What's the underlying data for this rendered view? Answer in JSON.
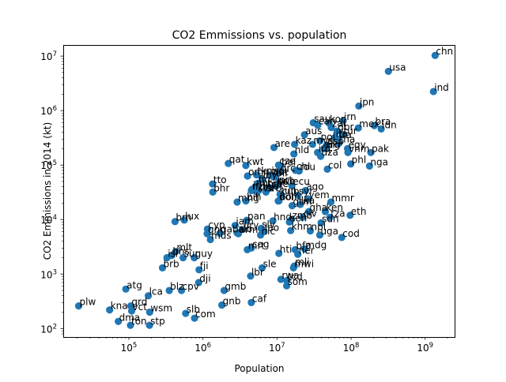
{
  "chart_data": {
    "type": "scatter",
    "title": "CO2 Emmissions vs. population",
    "xlabel": "Population",
    "ylabel": "CO2 Emmissions in 2014 (kt)",
    "xscale": "log",
    "yscale": "log",
    "xlim": [
      13000,
      2500000000
    ],
    "ylim": [
      70,
      16000000
    ],
    "grid": false,
    "marker_color": "#1f77b4",
    "x_ticks": [
      {
        "value": 100000,
        "base": "10",
        "exp": "5"
      },
      {
        "value": 1000000,
        "base": "10",
        "exp": "6"
      },
      {
        "value": 10000000,
        "base": "10",
        "exp": "7"
      },
      {
        "value": 100000000,
        "base": "10",
        "exp": "8"
      },
      {
        "value": 1000000000,
        "base": "10",
        "exp": "9"
      }
    ],
    "y_ticks": [
      {
        "value": 100,
        "base": "10",
        "exp": "2"
      },
      {
        "value": 1000,
        "base": "10",
        "exp": "3"
      },
      {
        "value": 10000,
        "base": "10",
        "exp": "4"
      },
      {
        "value": 100000,
        "base": "10",
        "exp": "5"
      },
      {
        "value": 1000000,
        "base": "10",
        "exp": "6"
      },
      {
        "value": 10000000,
        "base": "10",
        "exp": "7"
      }
    ],
    "points": [
      {
        "label": "chn",
        "x": 1364000000,
        "y": 10300000
      },
      {
        "label": "usa",
        "x": 318900000,
        "y": 5250000
      },
      {
        "label": "ind",
        "x": 1295000000,
        "y": 2240000
      },
      {
        "label": "jpn",
        "x": 127300000,
        "y": 1210000
      },
      {
        "label": "irn",
        "x": 78100000,
        "y": 650000
      },
      {
        "label": "sau",
        "x": 30900000,
        "y": 600000
      },
      {
        "label": "kor",
        "x": 50400000,
        "y": 590000
      },
      {
        "label": "can",
        "x": 35500000,
        "y": 540000
      },
      {
        "label": "bra",
        "x": 206000000,
        "y": 530000
      },
      {
        "label": "mex",
        "x": 125400000,
        "y": 480000
      },
      {
        "label": "idn",
        "x": 255100000,
        "y": 460000
      },
      {
        "label": "zaf",
        "x": 54000000,
        "y": 490000
      },
      {
        "label": "gbr",
        "x": 64600000,
        "y": 420000
      },
      {
        "label": "tur",
        "x": 77000000,
        "y": 360000
      },
      {
        "label": "aus",
        "x": 23500000,
        "y": 360000
      },
      {
        "label": "fra",
        "x": 66300000,
        "y": 300000
      },
      {
        "label": "ita",
        "x": 60800000,
        "y": 320000
      },
      {
        "label": "pol",
        "x": 38000000,
        "y": 280000
      },
      {
        "label": "tha",
        "x": 68400000,
        "y": 250000
      },
      {
        "label": "esp",
        "x": 46500000,
        "y": 230000
      },
      {
        "label": "egy",
        "x": 89600000,
        "y": 200000
      },
      {
        "label": "vnm",
        "x": 90700000,
        "y": 170000
      },
      {
        "label": "pak",
        "x": 185000000,
        "y": 170000
      },
      {
        "label": "are",
        "x": 9100000,
        "y": 210000
      },
      {
        "label": "nld",
        "x": 16900000,
        "y": 160000
      },
      {
        "label": "ukr",
        "x": 45300000,
        "y": 200000
      },
      {
        "label": "mys",
        "x": 30200000,
        "y": 240000
      },
      {
        "label": "kaz",
        "x": 17300000,
        "y": 240000
      },
      {
        "label": "arg",
        "x": 42900000,
        "y": 200000
      },
      {
        "label": "irq",
        "x": 35300000,
        "y": 170000
      },
      {
        "label": "dza",
        "x": 38900000,
        "y": 145000
      },
      {
        "label": "phl",
        "x": 99100000,
        "y": 105000
      },
      {
        "label": "nga",
        "x": 177500000,
        "y": 96000
      },
      {
        "label": "col",
        "x": 47800000,
        "y": 84000
      },
      {
        "label": "qat",
        "x": 2200000,
        "y": 107000
      },
      {
        "label": "kwt",
        "x": 3800000,
        "y": 98000
      },
      {
        "label": "bel",
        "x": 11200000,
        "y": 95000
      },
      {
        "label": "cze",
        "x": 10500000,
        "y": 100000
      },
      {
        "label": "grc",
        "x": 10900000,
        "y": 75000
      },
      {
        "label": "rou",
        "x": 19900000,
        "y": 78000
      },
      {
        "label": "chl",
        "x": 17800000,
        "y": 80000
      },
      {
        "label": "isr",
        "x": 8200000,
        "y": 66000
      },
      {
        "label": "aut",
        "x": 8500000,
        "y": 63000
      },
      {
        "label": "blr",
        "x": 9500000,
        "y": 60000
      },
      {
        "label": "prt",
        "x": 10400000,
        "y": 45000
      },
      {
        "label": "swe",
        "x": 9700000,
        "y": 43000
      },
      {
        "label": "hun",
        "x": 9900000,
        "y": 42000
      },
      {
        "label": "che",
        "x": 8200000,
        "y": 38000
      },
      {
        "label": "ecu",
        "x": 15900000,
        "y": 42000
      },
      {
        "label": "ago",
        "x": 24200000,
        "y": 34000
      },
      {
        "label": "tto",
        "x": 1350000,
        "y": 45000
      },
      {
        "label": "bhr",
        "x": 1360000,
        "y": 32000
      },
      {
        "label": "nor",
        "x": 5100000,
        "y": 40000
      },
      {
        "label": "fin",
        "x": 5460000,
        "y": 46000
      },
      {
        "label": "dnk",
        "x": 5640000,
        "y": 34000
      },
      {
        "label": "irl",
        "x": 4600000,
        "y": 36000
      },
      {
        "label": "nzl",
        "x": 4500000,
        "y": 34000
      },
      {
        "label": "mng",
        "x": 2900000,
        "y": 21000
      },
      {
        "label": "srb",
        "x": 7100000,
        "y": 32000
      },
      {
        "label": "bgr",
        "x": 7200000,
        "y": 38000
      },
      {
        "label": "lby",
        "x": 6300000,
        "y": 55000
      },
      {
        "label": "omn",
        "x": 4000000,
        "y": 63000
      },
      {
        "label": "svk",
        "x": 5400000,
        "y": 32000
      },
      {
        "label": "tkm",
        "x": 5300000,
        "y": 66000
      },
      {
        "label": "syr",
        "x": 19200000,
        "y": 28000
      },
      {
        "label": "bol",
        "x": 10600000,
        "y": 22000
      },
      {
        "label": "yem",
        "x": 26200000,
        "y": 24000
      },
      {
        "label": "mmr",
        "x": 53400000,
        "y": 21000
      },
      {
        "label": "tun",
        "x": 11000000,
        "y": 29000
      },
      {
        "label": "cub",
        "x": 11400000,
        "y": 28000
      },
      {
        "label": "dom",
        "x": 10400000,
        "y": 22000
      },
      {
        "label": "gtm",
        "x": 16000000,
        "y": 18000
      },
      {
        "label": "lka",
        "x": 20600000,
        "y": 19000
      },
      {
        "label": "ken",
        "x": 44900000,
        "y": 14000
      },
      {
        "label": "tza",
        "x": 51800000,
        "y": 11000
      },
      {
        "label": "eth",
        "x": 97000000,
        "y": 12000
      },
      {
        "label": "gha",
        "x": 26800000,
        "y": 14000
      },
      {
        "label": "civ",
        "x": 22200000,
        "y": 11000
      },
      {
        "label": "zmb",
        "x": 15600000,
        "y": 10000
      },
      {
        "label": "sen",
        "x": 14700000,
        "y": 9000
      },
      {
        "label": "bih",
        "x": 3800000,
        "y": 22000
      },
      {
        "label": "hnd",
        "x": 8800000,
        "y": 9500
      },
      {
        "label": "pan",
        "x": 3900000,
        "y": 9700
      },
      {
        "label": "brn",
        "x": 420000,
        "y": 9200
      },
      {
        "label": "lux",
        "x": 560000,
        "y": 9800
      },
      {
        "label": "jam",
        "x": 2720000,
        "y": 7800
      },
      {
        "label": "alb",
        "x": 2890000,
        "y": 5700
      },
      {
        "label": "ury",
        "x": 3420000,
        "y": 6600
      },
      {
        "label": "arm",
        "x": 3010000,
        "y": 5500
      },
      {
        "label": "cyp",
        "x": 1150000,
        "y": 6700
      },
      {
        "label": "gnq",
        "x": 1140000,
        "y": 5500
      },
      {
        "label": "gab",
        "x": 1690000,
        "y": 5600
      },
      {
        "label": "mus",
        "x": 1260000,
        "y": 4300
      },
      {
        "label": "mlt",
        "x": 430000,
        "y": 2600
      },
      {
        "label": "lao",
        "x": 6700000,
        "y": 6000
      },
      {
        "label": "npl",
        "x": 28200000,
        "y": 6200
      },
      {
        "label": "khm",
        "x": 15300000,
        "y": 6300
      },
      {
        "label": "sdn",
        "x": 39400000,
        "y": 8700
      },
      {
        "label": "slv",
        "x": 6100000,
        "y": 6900
      },
      {
        "label": "nic",
        "x": 6000000,
        "y": 5200
      },
      {
        "label": "uga",
        "x": 37800000,
        "y": 5200
      },
      {
        "label": "cod",
        "x": 74900000,
        "y": 4700
      },
      {
        "label": "hti",
        "x": 10600000,
        "y": 2400
      },
      {
        "label": "mdg",
        "x": 23600000,
        "y": 2900
      },
      {
        "label": "bfa",
        "x": 17600000,
        "y": 2800
      },
      {
        "label": "ner",
        "x": 19100000,
        "y": 2300
      },
      {
        "label": "mwi",
        "x": 16700000,
        "y": 1300
      },
      {
        "label": "mli",
        "x": 17100000,
        "y": 1400
      },
      {
        "label": "cog",
        "x": 4500000,
        "y": 3000
      },
      {
        "label": "mrt",
        "x": 3970000,
        "y": 2800
      },
      {
        "label": "bhs",
        "x": 380000,
        "y": 2200
      },
      {
        "label": "isl",
        "x": 327000,
        "y": 2000
      },
      {
        "label": "sur",
        "x": 540000,
        "y": 2000
      },
      {
        "label": "guy",
        "x": 763000,
        "y": 2000
      },
      {
        "label": "brb",
        "x": 284000,
        "y": 1300
      },
      {
        "label": "fji",
        "x": 886000,
        "y": 1200
      },
      {
        "label": "dji",
        "x": 876000,
        "y": 700
      },
      {
        "label": "sle",
        "x": 6300000,
        "y": 1300
      },
      {
        "label": "lbr",
        "x": 4400000,
        "y": 920
      },
      {
        "label": "rwa",
        "x": 11300000,
        "y": 800
      },
      {
        "label": "tcd",
        "x": 13600000,
        "y": 760
      },
      {
        "label": "som",
        "x": 13500000,
        "y": 610
      },
      {
        "label": "atg",
        "x": 91000,
        "y": 530
      },
      {
        "label": "lca",
        "x": 183000,
        "y": 400
      },
      {
        "label": "blz",
        "x": 351000,
        "y": 500
      },
      {
        "label": "cpv",
        "x": 513000,
        "y": 500
      },
      {
        "label": "gmb",
        "x": 1930000,
        "y": 500
      },
      {
        "label": "plw",
        "x": 21000,
        "y": 260
      },
      {
        "label": "kna",
        "x": 55000,
        "y": 220
      },
      {
        "label": "grd",
        "x": 106000,
        "y": 260
      },
      {
        "label": "vct",
        "x": 109000,
        "y": 210
      },
      {
        "label": "wsm",
        "x": 191000,
        "y": 200
      },
      {
        "label": "caf",
        "x": 4500000,
        "y": 300
      },
      {
        "label": "gnb",
        "x": 1800000,
        "y": 270
      },
      {
        "label": "slb",
        "x": 584000,
        "y": 190
      },
      {
        "label": "com",
        "x": 770000,
        "y": 155
      },
      {
        "label": "dma",
        "x": 72000,
        "y": 135
      },
      {
        "label": "ton",
        "x": 105000,
        "y": 115
      },
      {
        "label": "stp",
        "x": 190000,
        "y": 115
      }
    ]
  }
}
